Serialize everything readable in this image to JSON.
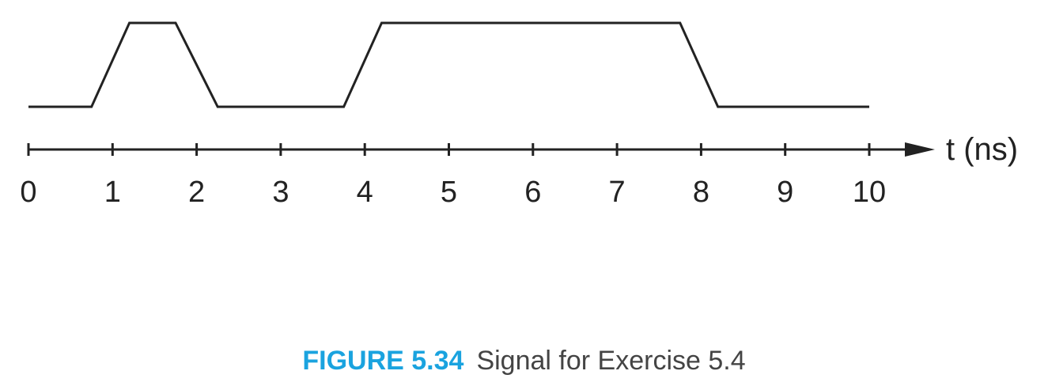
{
  "chart_data": {
    "type": "line",
    "title": "",
    "xlabel": "t (ns)",
    "ylabel": "",
    "xlim": [
      0,
      10
    ],
    "ylim": [
      0,
      1
    ],
    "grid": false,
    "x_ticks": [
      "0",
      "1",
      "2",
      "3",
      "4",
      "5",
      "6",
      "7",
      "8",
      "9",
      "10"
    ],
    "series": [
      {
        "x": [
          0,
          0.75,
          1.2,
          1.75,
          2.25,
          3.75,
          4.2,
          7.75,
          8.2,
          10
        ],
        "y": [
          0,
          0,
          1,
          1,
          0,
          0,
          1,
          1,
          0,
          0
        ]
      }
    ],
    "colors": {
      "line": "#222222",
      "axis": "#222222"
    }
  },
  "caption": {
    "label": "FIGURE 5.34",
    "text": "Signal for Exercise 5.4",
    "label_color": "#1aa3df"
  }
}
